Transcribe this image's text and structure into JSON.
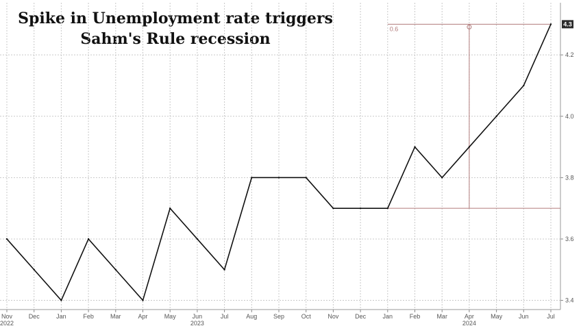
{
  "chart_data": {
    "type": "line",
    "title_lines": [
      "Spike in Unemployment rate triggers",
      "Sahm's Rule recession"
    ],
    "x": [
      "Nov",
      "Dec",
      "Jan",
      "Feb",
      "Mar",
      "Apr",
      "May",
      "Jun",
      "Jul",
      "Aug",
      "Sep",
      "Oct",
      "Nov",
      "Dec",
      "Jan",
      "Feb",
      "Mar",
      "Apr",
      "May",
      "Jun",
      "Jul"
    ],
    "year_labels": [
      {
        "label": "2022",
        "index": 0
      },
      {
        "label": "2023",
        "index": 7
      },
      {
        "label": "2024",
        "index": 17
      }
    ],
    "values": [
      3.6,
      3.5,
      3.4,
      3.6,
      3.5,
      3.4,
      3.7,
      3.6,
      3.5,
      3.8,
      3.8,
      3.8,
      3.7,
      3.7,
      3.7,
      3.9,
      3.8,
      3.9,
      4.0,
      4.1,
      4.3
    ],
    "yticks": [
      "3.4",
      "3.6",
      "3.8",
      "4.0",
      "4.2"
    ],
    "ylim": [
      3.37,
      4.37
    ],
    "y_axis_side": "right",
    "grid": "dashed vertical and horizontal",
    "last_value_label": "4.3",
    "annotation": {
      "label": "0.6",
      "low": 3.7,
      "high": 4.3,
      "from_index": 14,
      "to_index": 20,
      "marker_index": 17
    },
    "colors": {
      "line": "#111111",
      "annotation": "#b07a7a",
      "grid": "#c8c8c8",
      "label_box": "#2b2b2b"
    }
  }
}
